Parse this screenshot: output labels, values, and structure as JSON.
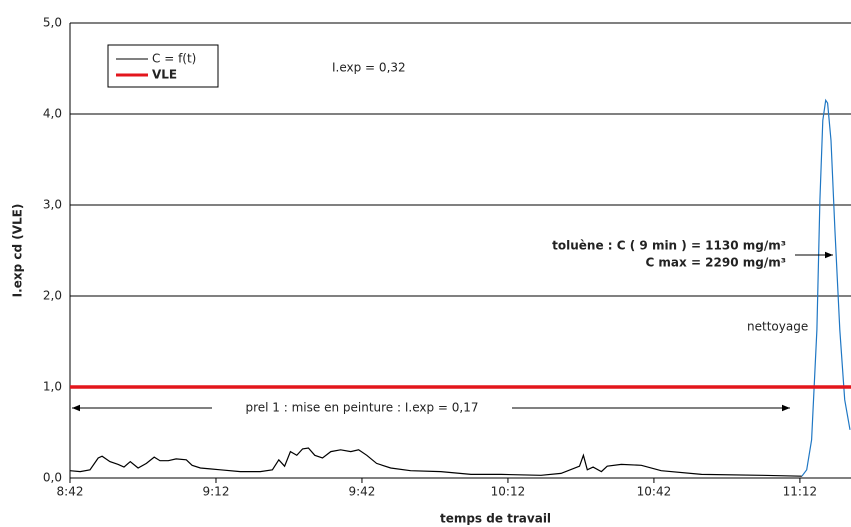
{
  "chart_data": {
    "type": "line",
    "y_label": "I.exp cd (VLE)",
    "x_label": "temps de travail",
    "xlim": [
      522,
      682.5
    ],
    "xticks": [
      {
        "value": 522,
        "label": "8:42"
      },
      {
        "value": 552,
        "label": "9:12"
      },
      {
        "value": 582,
        "label": "9:42"
      },
      {
        "value": 612,
        "label": "10:12"
      },
      {
        "value": 642,
        "label": "10:42"
      },
      {
        "value": 672,
        "label": "11:12"
      }
    ],
    "ylim": [
      0,
      5
    ],
    "yticks": [
      {
        "value": 0,
        "label": "0,0"
      },
      {
        "value": 1,
        "label": "1,0"
      },
      {
        "value": 2,
        "label": "2,0"
      },
      {
        "value": 3,
        "label": "3,0"
      },
      {
        "value": 4,
        "label": "4,0"
      },
      {
        "value": 5,
        "label": "5,0"
      }
    ],
    "grid": true,
    "series": [
      {
        "name": "C = f(t)",
        "color": "#000000",
        "x": [
          522,
          524.1,
          526.1,
          527.8,
          528.6,
          530.2,
          531.9,
          533.1,
          534.4,
          536.0,
          537.7,
          539.3,
          540.5,
          542.2,
          543.8,
          545.9,
          547.1,
          548.8,
          550.8,
          552.9,
          557.0,
          561.1,
          563.6,
          564.9,
          566.1,
          567.3,
          568.6,
          569.8,
          571.0,
          572.3,
          573.9,
          575.6,
          577.6,
          579.7,
          581.3,
          583.0,
          585.0,
          587.9,
          592.0,
          598.2,
          604.4,
          610.6,
          618.8,
          622.9,
          626.7,
          627.5,
          628.3,
          629.5,
          631.2,
          632.4,
          635.3,
          639.4,
          643.5,
          651.8,
          664.1,
          672.4
        ],
        "values": [
          0.08,
          0.07,
          0.09,
          0.22,
          0.24,
          0.18,
          0.15,
          0.12,
          0.18,
          0.11,
          0.16,
          0.23,
          0.19,
          0.19,
          0.21,
          0.2,
          0.14,
          0.11,
          0.1,
          0.09,
          0.07,
          0.07,
          0.09,
          0.2,
          0.13,
          0.29,
          0.25,
          0.32,
          0.33,
          0.25,
          0.22,
          0.29,
          0.31,
          0.29,
          0.31,
          0.25,
          0.16,
          0.11,
          0.08,
          0.07,
          0.04,
          0.04,
          0.03,
          0.05,
          0.13,
          0.25,
          0.09,
          0.12,
          0.07,
          0.13,
          0.15,
          0.14,
          0.08,
          0.04,
          0.03,
          0.02
        ]
      },
      {
        "color": "#1f77c4",
        "x": [
          672.4,
          673.4,
          674.4,
          675.5,
          676.1,
          676.7,
          677.3,
          677.7,
          678.4,
          679.2,
          680.2,
          681.2,
          682.3
        ],
        "values": [
          0.02,
          0.09,
          0.42,
          1.63,
          3.05,
          3.93,
          4.15,
          4.12,
          3.71,
          2.73,
          1.63,
          0.86,
          0.53
        ]
      }
    ],
    "reference_line": {
      "name": "VLE",
      "value": 1,
      "color": "#e3161c"
    },
    "annotations": {
      "global_exposure": "I.exp = 0,32",
      "phase_1": "prel 1 : mise en peinture : I.exp = 0,17",
      "toluene_c": "toluène : C ( 9 min )  = 1130 mg/m³",
      "toluene_max": "C max  = 2290 mg/m³",
      "cleaning": "nettoyage"
    }
  }
}
